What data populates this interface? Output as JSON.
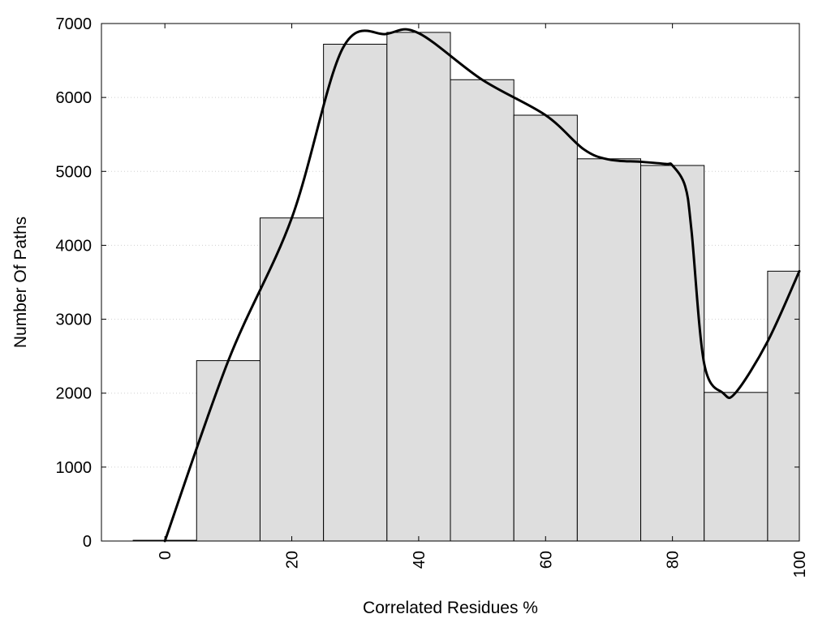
{
  "chart_data": {
    "type": "bar",
    "xlabel": "Correlated Residues %",
    "ylabel": "Number Of Paths",
    "x": [
      0,
      10,
      20,
      30,
      40,
      50,
      60,
      70,
      80,
      90,
      100
    ],
    "values": [
      10,
      2440,
      4370,
      6720,
      6880,
      6240,
      5760,
      5170,
      5080,
      2010,
      3650
    ],
    "bin_width": 10,
    "xlim": [
      -10,
      100
    ],
    "ylim": [
      0,
      7000
    ],
    "x_ticks": [
      0,
      20,
      40,
      60,
      80,
      100
    ],
    "y_ticks": [
      0,
      1000,
      2000,
      3000,
      4000,
      5000,
      6000,
      7000
    ],
    "grid": "horizontal dotted",
    "curve": {
      "type": "smoothed line",
      "x": [
        0,
        10,
        20,
        28,
        35,
        40,
        50,
        60,
        66,
        70,
        75,
        79,
        80,
        82,
        83,
        85,
        88,
        90,
        95,
        100
      ],
      "y": [
        0,
        2440,
        4370,
        6660,
        6860,
        6870,
        6240,
        5760,
        5300,
        5160,
        5130,
        5100,
        5080,
        4800,
        4200,
        2400,
        2000,
        2010,
        2700,
        3650
      ]
    },
    "colors": {
      "bar_fill": "#dedede",
      "bar_edge": "#000000",
      "curve": "#000000",
      "grid": "#cfcfcf"
    }
  }
}
